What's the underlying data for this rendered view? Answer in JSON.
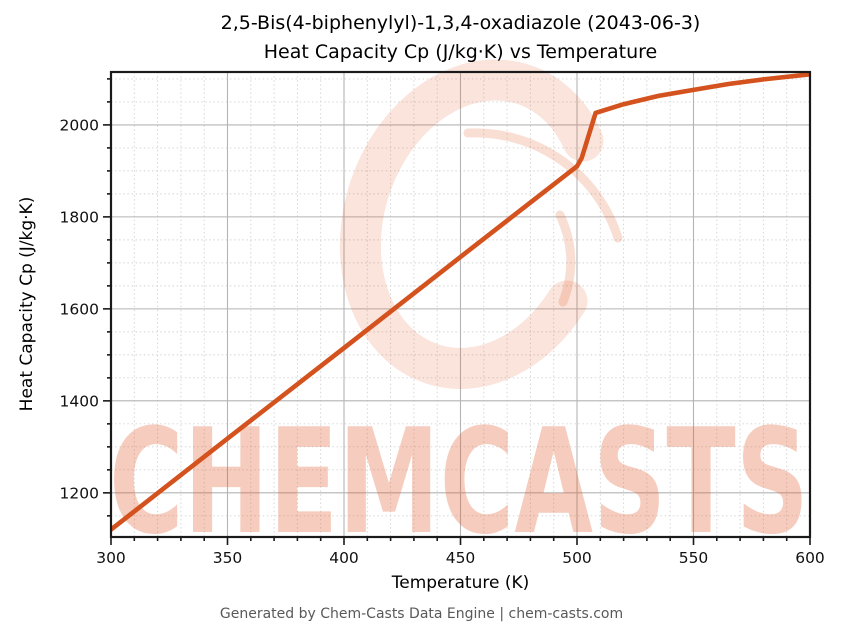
{
  "page": {
    "footer": "Generated by Chem-Casts Data Engine | chem-casts.com"
  },
  "watermark": {
    "text": "CHEMCASTS",
    "logo": "c-swoosh-icon",
    "color": "#e05a28",
    "text_opacity": 0.3,
    "logo_opacity": 0.16
  },
  "chart_data": {
    "type": "line",
    "title": "2,5-Bis(4-biphenylyl)-1,3,4-oxadiazole (2043-06-3)",
    "subtitle": "Heat Capacity Cp (J/kg·K) vs Temperature",
    "xlabel": "Temperature (K)",
    "ylabel": "Heat Capacity Cp (J/kg·K)",
    "xlim": [
      300,
      600
    ],
    "ylim": [
      1104,
      2115
    ],
    "x_major_ticks": [
      300,
      350,
      400,
      450,
      500,
      550,
      600
    ],
    "y_major_ticks": [
      1200,
      1400,
      1600,
      1800,
      2000
    ],
    "x_minor_step": 10,
    "y_minor_step": 50,
    "grid": true,
    "legend": false,
    "line_color": "#d4521e",
    "series": [
      {
        "name": "Heat Capacity Cp",
        "x": [
          300,
          350,
          400,
          450,
          500,
          502,
          508,
          520,
          535,
          550,
          565,
          580,
          600
        ],
        "y": [
          1120,
          1318,
          1515,
          1713,
          1910,
          1928,
          2026,
          2045,
          2063,
          2076,
          2089,
          2099,
          2110
        ]
      }
    ]
  }
}
